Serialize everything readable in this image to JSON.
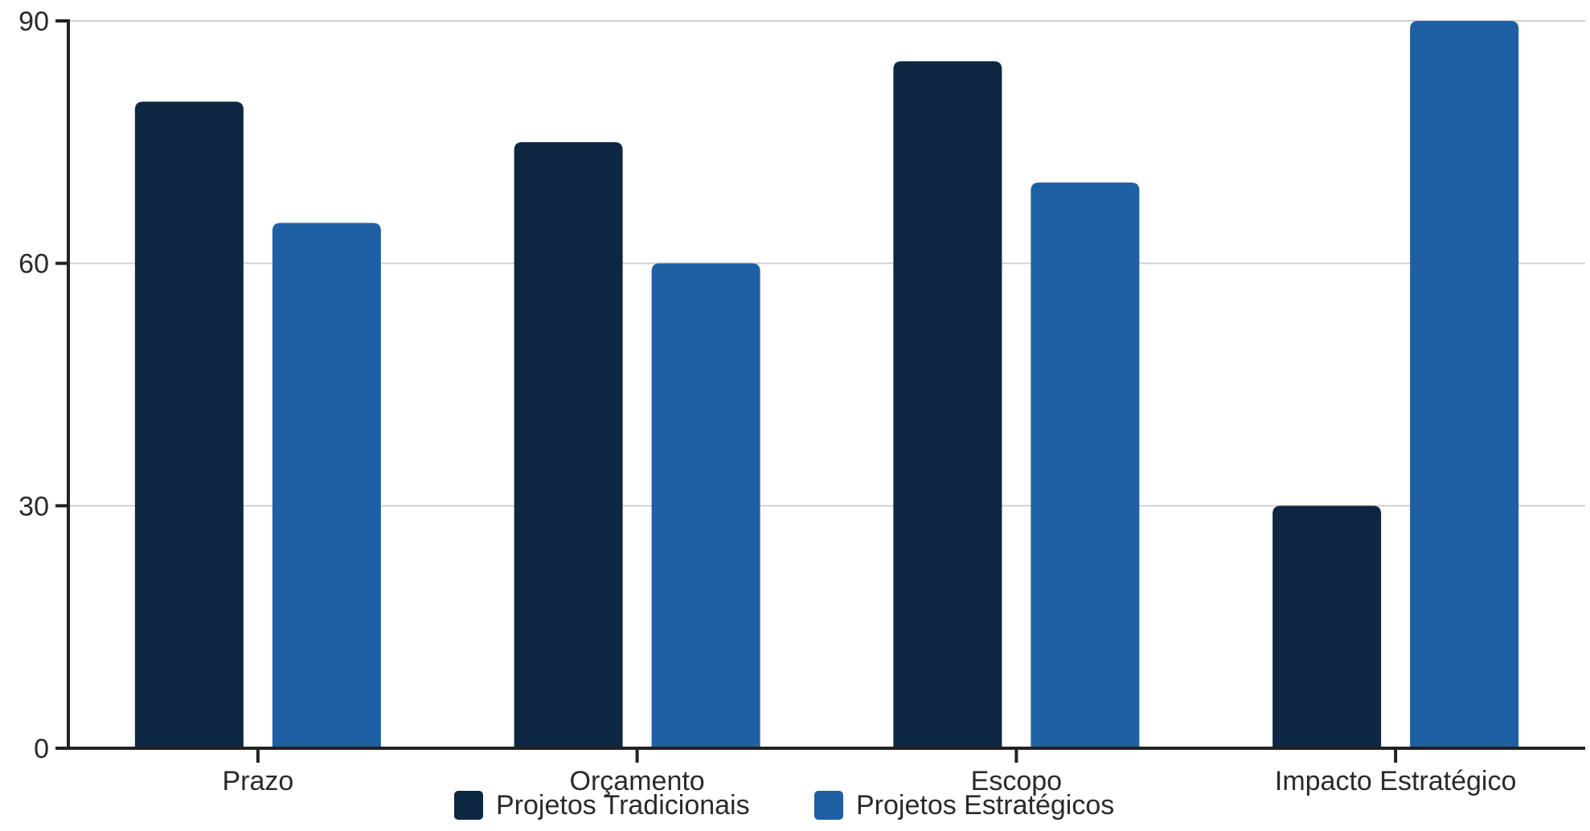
{
  "chart_data": {
    "type": "bar",
    "categories": [
      "Prazo",
      "Orçamento",
      "Escopo",
      "Impacto Estratégico"
    ],
    "series": [
      {
        "name": "Projetos Tradicionais",
        "values": [
          80,
          75,
          85,
          30
        ],
        "color": "#0d2742"
      },
      {
        "name": "Projetos Estratégicos",
        "values": [
          65,
          60,
          70,
          90
        ],
        "color": "#1f5fa3"
      }
    ],
    "title": "",
    "xlabel": "",
    "ylabel": "",
    "ylim": [
      0,
      90
    ],
    "yticks": [
      0,
      30,
      60,
      90
    ],
    "grid": true,
    "legend_position": "bottom-center",
    "colors": {
      "grid": "#d0d0d0",
      "axis": "#222222",
      "text": "#2a2a2a"
    }
  }
}
